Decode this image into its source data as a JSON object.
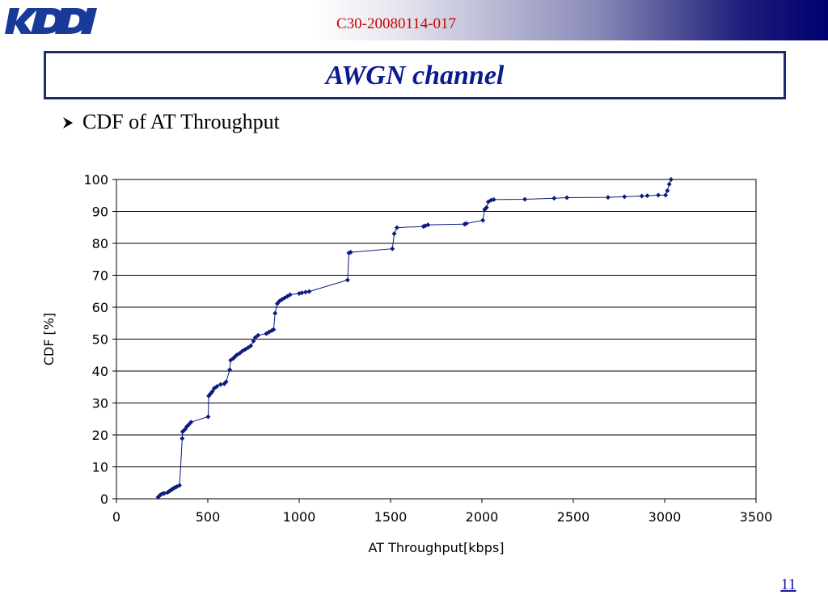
{
  "header": {
    "logo_text": "KDDI",
    "doc_id": "C30-20080114-017"
  },
  "slide": {
    "title": "AWGN channel",
    "bullet": "CDF of AT Throughput",
    "page_number": "11"
  },
  "colors": {
    "title": "#0a1a90",
    "doc_id": "#cc0000",
    "series": "#0d1a80",
    "frame": "#1f2a6e"
  },
  "chart_data": {
    "type": "line",
    "xlabel": "AT Throughput[kbps]",
    "ylabel": "CDF [%]",
    "xlim": [
      0,
      3500
    ],
    "ylim": [
      0,
      100
    ],
    "xticks": [
      0,
      500,
      1000,
      1500,
      2000,
      2500,
      3000,
      3500
    ],
    "yticks": [
      0,
      10,
      20,
      30,
      40,
      50,
      60,
      70,
      80,
      90,
      100
    ],
    "grid": "horizontal",
    "legend": "none",
    "marker": "diamond",
    "series": [
      {
        "x": [
          228,
          240,
          252,
          262,
          280,
          290,
          300,
          310,
          320,
          330,
          345,
          360,
          362,
          375,
          385,
          395,
          408,
          502,
          505,
          515,
          525,
          535,
          550,
          570,
          590,
          600,
          620,
          625,
          640,
          650,
          660,
          675,
          690,
          705,
          720,
          735,
          750,
          760,
          775,
          820,
          835,
          850,
          860,
          868,
          880,
          892,
          905,
          920,
          935,
          950,
          1000,
          1015,
          1035,
          1055,
          1265,
          1272,
          1282,
          1510,
          1520,
          1535,
          1680,
          1690,
          1705,
          1905,
          1915,
          2005,
          2015,
          2025,
          2035,
          2050,
          2065,
          2235,
          2395,
          2465,
          2690,
          2780,
          2875,
          2905,
          2965,
          3005,
          3015,
          3025,
          3035
        ],
        "y": [
          0.5,
          1.2,
          1.6,
          1.7,
          2.0,
          2.4,
          2.8,
          3.2,
          3.5,
          3.8,
          4.2,
          18.9,
          21.0,
          21.7,
          22.6,
          23.2,
          24.0,
          25.7,
          32.2,
          32.9,
          33.6,
          34.6,
          35.2,
          35.8,
          36.0,
          36.6,
          40.4,
          43.4,
          44.0,
          44.6,
          45.1,
          45.6,
          46.3,
          46.8,
          47.3,
          47.9,
          49.4,
          50.5,
          51.2,
          51.7,
          52.2,
          52.7,
          53.0,
          58.1,
          61.1,
          61.9,
          62.4,
          62.9,
          63.4,
          63.9,
          64.3,
          64.5,
          64.7,
          64.9,
          68.5,
          77.0,
          77.2,
          78.3,
          83.0,
          84.9,
          85.3,
          85.5,
          85.8,
          86.0,
          86.2,
          87.2,
          90.6,
          91.2,
          93.0,
          93.5,
          93.7,
          93.8,
          94.1,
          94.3,
          94.4,
          94.6,
          94.8,
          94.9,
          95.1,
          95.1,
          96.5,
          98.5,
          100.0
        ]
      }
    ]
  }
}
